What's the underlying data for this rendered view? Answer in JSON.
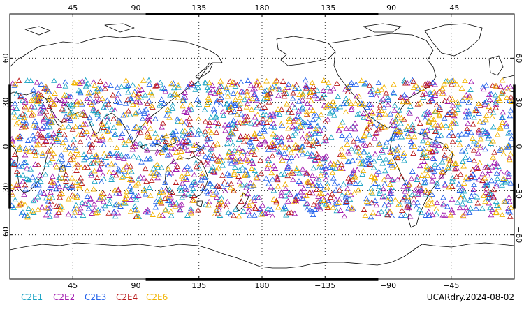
{
  "chart_data": {
    "type": "scatter",
    "projection": "cylindrical-equidistant",
    "central_longitude": 180,
    "x_range": [
      0,
      360
    ],
    "y_range": [
      -90,
      90
    ],
    "grid": true,
    "grid_style": "dotted",
    "marker": "open-triangle",
    "lon_ticks": [
      {
        "value": 45,
        "label": "45"
      },
      {
        "value": 90,
        "label": "90"
      },
      {
        "value": 135,
        "label": "135"
      },
      {
        "value": 180,
        "label": "180"
      },
      {
        "value": 225,
        "label": "−135"
      },
      {
        "value": 270,
        "label": "−90"
      },
      {
        "value": 315,
        "label": "−45"
      }
    ],
    "lat_ticks": [
      {
        "value": 60,
        "label": "60"
      },
      {
        "value": 30,
        "label": "30"
      },
      {
        "value": 0,
        "label": "0"
      },
      {
        "value": -30,
        "label": "−30"
      },
      {
        "value": -60,
        "label": "−60"
      }
    ],
    "legend_placement": "bottom-left",
    "series": [
      {
        "name": "C2E1",
        "color": "#1aa3c4",
        "lat_range": [
          -48,
          45
        ],
        "count": 520
      },
      {
        "name": "C2E2",
        "color": "#a21caf",
        "lat_range": [
          -48,
          45
        ],
        "count": 520
      },
      {
        "name": "C2E3",
        "color": "#2563eb",
        "lat_range": [
          -48,
          45
        ],
        "count": 520
      },
      {
        "name": "C2E4",
        "color": "#b91c1c",
        "lat_range": [
          -48,
          45
        ],
        "count": 330
      },
      {
        "name": "C2E6",
        "color": "#f2b300",
        "lat_range": [
          -48,
          45
        ],
        "count": 520
      }
    ]
  },
  "footer": {
    "product": "UCARdry.2024-08-02"
  }
}
